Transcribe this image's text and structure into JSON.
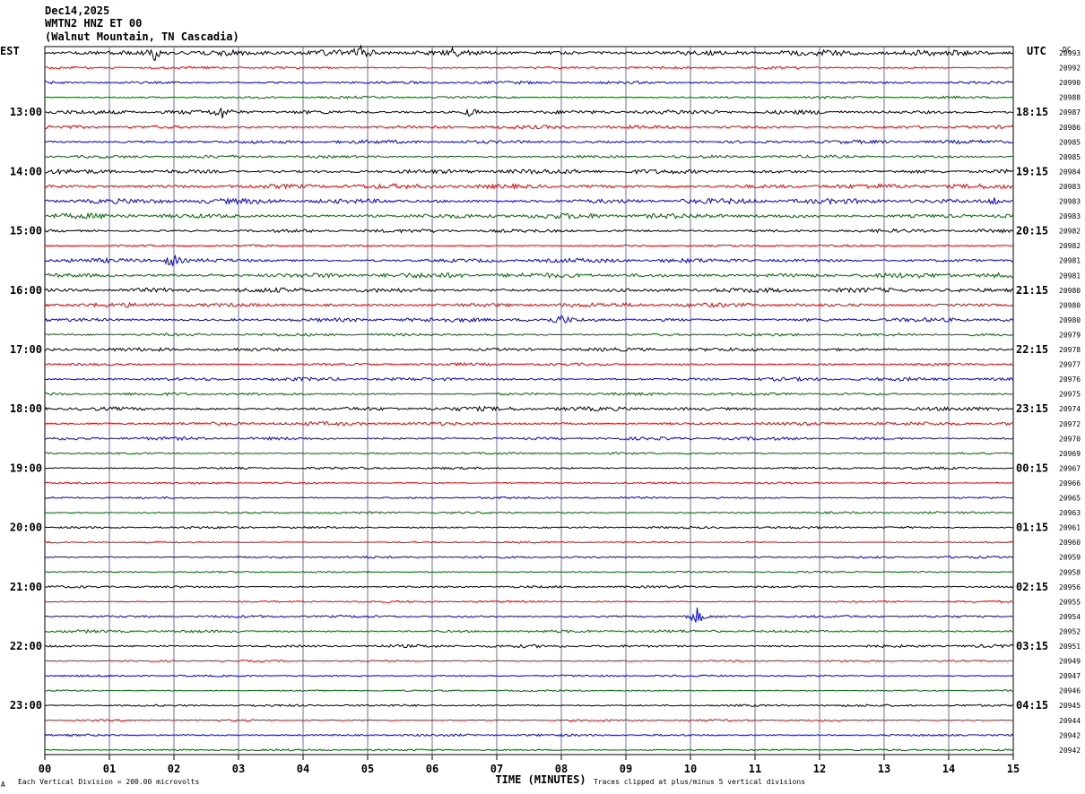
{
  "header": {
    "date": "Dec14,2025",
    "channel": "WMTN2 HNZ ET 00",
    "station": "(Walnut Mountain, TN Cascadia)"
  },
  "left_tz": "EST",
  "right_tz": "UTC",
  "dc_header": "DC",
  "footer": {
    "scale_note": "Each Vertical Division =  200.00 microvolts",
    "clip_note": "Traces clipped at plus/minus 5 vertical divisions",
    "corner_mark": "A"
  },
  "colors": {
    "trace_cycle": [
      "#000000",
      "#ee0000",
      "#0000dd",
      "#006600"
    ],
    "grid": "#6f6f9f"
  },
  "chart_data": {
    "type": "line",
    "title": "",
    "xlabel": "TIME (MINUTES)",
    "x_ticks": [
      "00",
      "01",
      "02",
      "03",
      "04",
      "05",
      "06",
      "07",
      "08",
      "09",
      "10",
      "11",
      "12",
      "13",
      "14",
      "15"
    ],
    "xlim": [
      0,
      15
    ],
    "rows_per_hour": 4,
    "left_hour_labels": [
      "13:00",
      "14:00",
      "15:00",
      "16:00",
      "17:00",
      "18:00",
      "19:00",
      "20:00",
      "21:00",
      "22:00",
      "23:00"
    ],
    "right_hour_labels": [
      "18:15",
      "19:15",
      "20:15",
      "21:15",
      "22:15",
      "23:15",
      "00:15",
      "01:15",
      "02:15",
      "03:15",
      "04:15"
    ],
    "dc_offsets": [
      "20993",
      "20992",
      "20990",
      "20988",
      "20987",
      "20986",
      "20985",
      "20985",
      "20984",
      "20983",
      "20983",
      "20983",
      "20982",
      "20982",
      "20981",
      "20981",
      "20980",
      "20980",
      "20980",
      "20979",
      "20978",
      "20977",
      "20976",
      "20975",
      "20974",
      "20972",
      "20970",
      "20969",
      "20967",
      "20966",
      "20965",
      "20963",
      "20961",
      "20960",
      "20959",
      "20958",
      "20956",
      "20955",
      "20954",
      "20952",
      "20951",
      "20949",
      "20947",
      "20946",
      "20945",
      "20944",
      "20942",
      "20942"
    ],
    "row_amplitude": [
      2.5,
      1.0,
      1.2,
      1.0,
      1.8,
      1.5,
      1.5,
      1.3,
      2.0,
      2.0,
      2.2,
      2.2,
      1.5,
      0.8,
      1.8,
      2.2,
      2.0,
      1.8,
      1.8,
      1.2,
      1.5,
      1.2,
      1.5,
      1.2,
      1.8,
      1.5,
      1.3,
      0.9,
      1.0,
      0.8,
      0.9,
      0.9,
      1.0,
      0.7,
      0.9,
      0.7,
      1.0,
      0.8,
      1.0,
      1.2,
      1.3,
      0.7,
      0.8,
      0.7,
      1.0,
      0.7,
      1.0,
      0.8
    ],
    "events": [
      {
        "row": 0,
        "minute": 1.7,
        "amplitude": 8
      },
      {
        "row": 0,
        "minute": 4.9,
        "amplitude": 6
      },
      {
        "row": 0,
        "minute": 6.3,
        "amplitude": 5
      },
      {
        "row": 4,
        "minute": 2.75,
        "amplitude": 6
      },
      {
        "row": 4,
        "minute": 6.6,
        "amplitude": 6
      },
      {
        "row": 14,
        "minute": 1.97,
        "amplitude": 9
      },
      {
        "row": 18,
        "minute": 8.0,
        "amplitude": 5
      },
      {
        "row": 38,
        "minute": 10.1,
        "amplitude": 10
      },
      {
        "row": 10,
        "minute": 14.7,
        "amplitude": 5
      }
    ]
  }
}
